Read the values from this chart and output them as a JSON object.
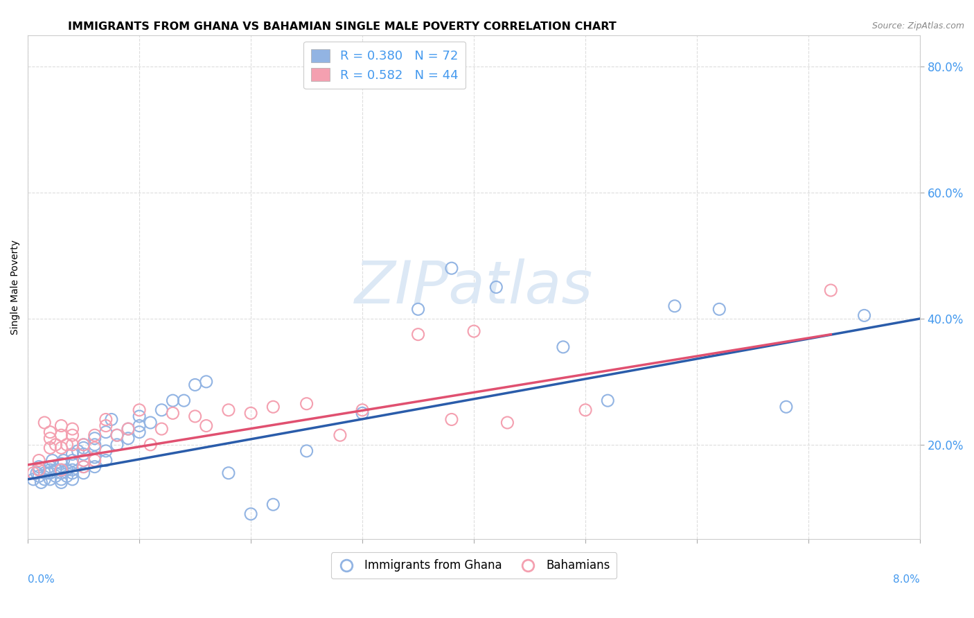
{
  "title": "IMMIGRANTS FROM GHANA VS BAHAMIAN SINGLE MALE POVERTY CORRELATION CHART",
  "source": "Source: ZipAtlas.com",
  "ylabel": "Single Male Poverty",
  "legend_label_bottom_left": "Immigrants from Ghana",
  "legend_label_bottom_right": "Bahamians",
  "blue_R": 0.38,
  "blue_N": 72,
  "pink_R": 0.582,
  "pink_N": 44,
  "blue_color": "#92b4e3",
  "pink_color": "#f4a0b0",
  "blue_line_color": "#2a5caa",
  "pink_line_color": "#e05070",
  "watermark": "ZIPatlas",
  "xlim": [
    0.0,
    0.08
  ],
  "ylim": [
    0.05,
    0.85
  ],
  "yticks": [
    0.2,
    0.4,
    0.6,
    0.8
  ],
  "ytick_labels": [
    "20.0%",
    "40.0%",
    "60.0%",
    "80.0%"
  ],
  "blue_scatter_x": [
    0.0005,
    0.0008,
    0.001,
    0.001,
    0.001,
    0.0012,
    0.0015,
    0.0015,
    0.0018,
    0.002,
    0.002,
    0.002,
    0.002,
    0.0022,
    0.0025,
    0.0025,
    0.003,
    0.003,
    0.003,
    0.003,
    0.003,
    0.0032,
    0.0035,
    0.0035,
    0.004,
    0.004,
    0.004,
    0.004,
    0.004,
    0.004,
    0.0045,
    0.005,
    0.005,
    0.005,
    0.005,
    0.005,
    0.005,
    0.006,
    0.006,
    0.006,
    0.006,
    0.007,
    0.007,
    0.007,
    0.0075,
    0.008,
    0.008,
    0.009,
    0.009,
    0.01,
    0.01,
    0.01,
    0.011,
    0.012,
    0.013,
    0.014,
    0.015,
    0.016,
    0.018,
    0.02,
    0.022,
    0.025,
    0.03,
    0.035,
    0.038,
    0.042,
    0.048,
    0.052,
    0.058,
    0.062,
    0.068,
    0.075
  ],
  "blue_scatter_y": [
    0.145,
    0.155,
    0.15,
    0.16,
    0.165,
    0.14,
    0.155,
    0.145,
    0.155,
    0.145,
    0.155,
    0.16,
    0.165,
    0.175,
    0.15,
    0.16,
    0.14,
    0.145,
    0.155,
    0.16,
    0.17,
    0.175,
    0.16,
    0.15,
    0.145,
    0.155,
    0.16,
    0.17,
    0.175,
    0.185,
    0.19,
    0.155,
    0.165,
    0.175,
    0.185,
    0.195,
    0.2,
    0.165,
    0.18,
    0.2,
    0.21,
    0.175,
    0.19,
    0.22,
    0.24,
    0.2,
    0.215,
    0.21,
    0.225,
    0.22,
    0.23,
    0.245,
    0.235,
    0.255,
    0.27,
    0.27,
    0.295,
    0.3,
    0.155,
    0.09,
    0.105,
    0.19,
    0.25,
    0.415,
    0.48,
    0.45,
    0.355,
    0.27,
    0.42,
    0.415,
    0.26,
    0.405
  ],
  "pink_scatter_x": [
    0.0005,
    0.001,
    0.001,
    0.0015,
    0.002,
    0.002,
    0.002,
    0.0025,
    0.003,
    0.003,
    0.003,
    0.003,
    0.0035,
    0.004,
    0.004,
    0.004,
    0.005,
    0.005,
    0.005,
    0.006,
    0.006,
    0.006,
    0.007,
    0.007,
    0.008,
    0.009,
    0.01,
    0.011,
    0.012,
    0.013,
    0.015,
    0.016,
    0.018,
    0.02,
    0.022,
    0.025,
    0.028,
    0.03,
    0.035,
    0.038,
    0.04,
    0.043,
    0.05,
    0.072
  ],
  "pink_scatter_y": [
    0.155,
    0.16,
    0.175,
    0.235,
    0.21,
    0.22,
    0.195,
    0.2,
    0.16,
    0.195,
    0.215,
    0.23,
    0.2,
    0.2,
    0.215,
    0.225,
    0.165,
    0.175,
    0.2,
    0.175,
    0.195,
    0.215,
    0.23,
    0.24,
    0.215,
    0.225,
    0.255,
    0.2,
    0.225,
    0.25,
    0.245,
    0.23,
    0.255,
    0.25,
    0.26,
    0.265,
    0.215,
    0.255,
    0.375,
    0.24,
    0.38,
    0.235,
    0.255,
    0.445
  ],
  "blue_line_x": [
    0.0,
    0.08
  ],
  "blue_line_y": [
    0.145,
    0.4
  ],
  "pink_line_x": [
    0.0,
    0.072
  ],
  "pink_line_y": [
    0.168,
    0.375
  ],
  "background_color": "#ffffff",
  "grid_color": "#dddddd",
  "title_fontsize": 11.5,
  "axis_label_fontsize": 10,
  "tick_color": "#4499ee",
  "watermark_color": "#dce8f5",
  "watermark_fontsize": 62,
  "source_color": "#888888"
}
